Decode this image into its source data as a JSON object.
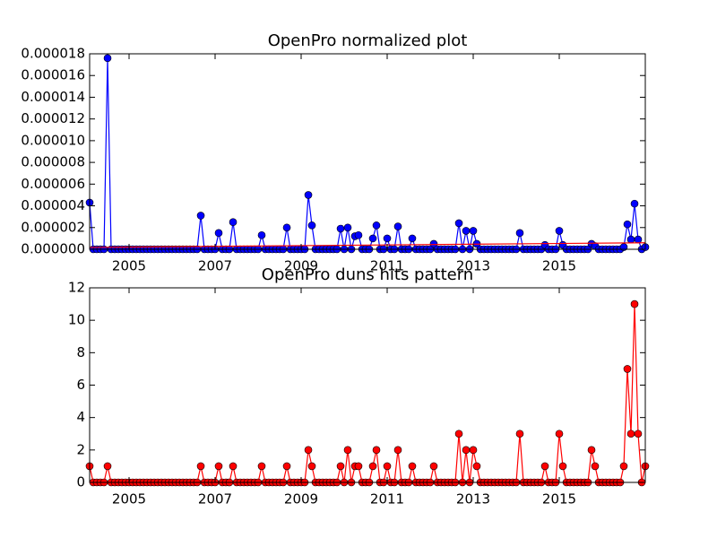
{
  "chart_data": [
    {
      "type": "line",
      "title": "OpenPro normalized plot",
      "x": [
        2004.083,
        2004.167,
        2004.25,
        2004.333,
        2004.417,
        2004.5,
        2004.583,
        2004.667,
        2004.75,
        2004.833,
        2004.917,
        2005,
        2005.083,
        2005.167,
        2005.25,
        2005.333,
        2005.417,
        2005.5,
        2005.583,
        2005.667,
        2005.75,
        2005.833,
        2005.917,
        2006,
        2006.083,
        2006.167,
        2006.25,
        2006.333,
        2006.417,
        2006.5,
        2006.583,
        2006.667,
        2006.75,
        2006.833,
        2006.917,
        2007,
        2007.083,
        2007.167,
        2007.25,
        2007.333,
        2007.417,
        2007.5,
        2007.583,
        2007.667,
        2007.75,
        2007.833,
        2007.917,
        2008,
        2008.083,
        2008.167,
        2008.25,
        2008.333,
        2008.417,
        2008.5,
        2008.583,
        2008.667,
        2008.75,
        2008.833,
        2008.917,
        2009,
        2009.083,
        2009.167,
        2009.25,
        2009.333,
        2009.417,
        2009.5,
        2009.583,
        2009.667,
        2009.75,
        2009.833,
        2009.917,
        2010,
        2010.083,
        2010.167,
        2010.25,
        2010.333,
        2010.417,
        2010.5,
        2010.583,
        2010.667,
        2010.75,
        2010.833,
        2010.917,
        2011,
        2011.083,
        2011.167,
        2011.25,
        2011.333,
        2011.417,
        2011.5,
        2011.583,
        2011.667,
        2011.75,
        2011.833,
        2011.917,
        2012,
        2012.083,
        2012.167,
        2012.25,
        2012.333,
        2012.417,
        2012.5,
        2012.583,
        2012.667,
        2012.75,
        2012.833,
        2012.917,
        2013,
        2013.083,
        2013.167,
        2013.25,
        2013.333,
        2013.417,
        2013.5,
        2013.583,
        2013.667,
        2013.75,
        2013.833,
        2013.917,
        2014,
        2014.083,
        2014.167,
        2014.25,
        2014.333,
        2014.417,
        2014.5,
        2014.583,
        2014.667,
        2014.75,
        2014.833,
        2014.917,
        2015,
        2015.083,
        2015.167,
        2015.25,
        2015.333,
        2015.417,
        2015.5,
        2015.583,
        2015.667,
        2015.75,
        2015.833,
        2015.917,
        2016,
        2016.083,
        2016.167,
        2016.25,
        2016.333,
        2016.417,
        2016.5,
        2016.583,
        2016.667,
        2016.75,
        2016.833,
        2016.917,
        2017
      ],
      "series": [
        {
          "color": "#0000ff",
          "marker": true,
          "values": [
            4.3e-06,
            0,
            0,
            0,
            0,
            1.76e-05,
            0,
            0,
            0,
            0,
            0,
            0,
            0,
            0,
            0,
            0,
            0,
            0,
            0,
            0,
            0,
            0,
            0,
            0,
            0,
            0,
            0,
            0,
            0,
            0,
            0,
            3.1e-06,
            0,
            0,
            0,
            0,
            1.5e-06,
            0,
            0,
            0,
            2.5e-06,
            0,
            0,
            0,
            0,
            0,
            0,
            0,
            1.3e-06,
            0,
            0,
            0,
            0,
            0,
            0,
            2e-06,
            0,
            0,
            0,
            0,
            0,
            5e-06,
            2.2e-06,
            0,
            0,
            0,
            0,
            0,
            0,
            0,
            1.9e-06,
            0,
            2e-06,
            0,
            1.2e-06,
            1.3e-06,
            0,
            0,
            0,
            1e-06,
            2.2e-06,
            0,
            0,
            1e-06,
            0,
            0,
            2.1e-06,
            0,
            0,
            0,
            1e-06,
            0,
            0,
            0,
            0,
            0,
            5e-07,
            0,
            0,
            0,
            0,
            0,
            0,
            2.4e-06,
            0,
            1.7e-06,
            0,
            1.7e-06,
            5e-07,
            0,
            0,
            0,
            0,
            0,
            0,
            0,
            0,
            0,
            0,
            0,
            1.5e-06,
            0,
            0,
            0,
            0,
            0,
            0,
            4e-07,
            0,
            0,
            0,
            1.7e-06,
            4e-07,
            0,
            0,
            0,
            0,
            0,
            0,
            0,
            5e-07,
            3e-07,
            0,
            0,
            0,
            0,
            0,
            0,
            0,
            2e-07,
            2.3e-06,
            9e-07,
            4.2e-06,
            9e-07,
            0,
            2e-07
          ]
        },
        {
          "color": "#ff0000",
          "marker": false,
          "x": [
            2004.083,
            2017
          ],
          "values": [
            1.7e-07,
            6e-07
          ]
        }
      ],
      "xlim": [
        2004.083,
        2017
      ],
      "xticks": [
        2005,
        2007,
        2009,
        2011,
        2013,
        2015
      ],
      "ylim": [
        0,
        1.8e-05
      ],
      "yticks": [
        {
          "value": 0,
          "label": "0.000000"
        },
        {
          "value": 2e-06,
          "label": "0.000002"
        },
        {
          "value": 4e-06,
          "label": "0.000004"
        },
        {
          "value": 6e-06,
          "label": "0.000006"
        },
        {
          "value": 8e-06,
          "label": "0.000008"
        },
        {
          "value": 1e-05,
          "label": "0.000010"
        },
        {
          "value": 1.2e-05,
          "label": "0.000012"
        },
        {
          "value": 1.4e-05,
          "label": "0.000014"
        },
        {
          "value": 1.6e-05,
          "label": "0.000016"
        },
        {
          "value": 1.8e-05,
          "label": "0.000018"
        }
      ]
    },
    {
      "type": "line",
      "title": "OpenPro duns hits pattern",
      "x": [
        2004.083,
        2004.167,
        2004.25,
        2004.333,
        2004.417,
        2004.5,
        2004.583,
        2004.667,
        2004.75,
        2004.833,
        2004.917,
        2005,
        2005.083,
        2005.167,
        2005.25,
        2005.333,
        2005.417,
        2005.5,
        2005.583,
        2005.667,
        2005.75,
        2005.833,
        2005.917,
        2006,
        2006.083,
        2006.167,
        2006.25,
        2006.333,
        2006.417,
        2006.5,
        2006.583,
        2006.667,
        2006.75,
        2006.833,
        2006.917,
        2007,
        2007.083,
        2007.167,
        2007.25,
        2007.333,
        2007.417,
        2007.5,
        2007.583,
        2007.667,
        2007.75,
        2007.833,
        2007.917,
        2008,
        2008.083,
        2008.167,
        2008.25,
        2008.333,
        2008.417,
        2008.5,
        2008.583,
        2008.667,
        2008.75,
        2008.833,
        2008.917,
        2009,
        2009.083,
        2009.167,
        2009.25,
        2009.333,
        2009.417,
        2009.5,
        2009.583,
        2009.667,
        2009.75,
        2009.833,
        2009.917,
        2010,
        2010.083,
        2010.167,
        2010.25,
        2010.333,
        2010.417,
        2010.5,
        2010.583,
        2010.667,
        2010.75,
        2010.833,
        2010.917,
        2011,
        2011.083,
        2011.167,
        2011.25,
        2011.333,
        2011.417,
        2011.5,
        2011.583,
        2011.667,
        2011.75,
        2011.833,
        2011.917,
        2012,
        2012.083,
        2012.167,
        2012.25,
        2012.333,
        2012.417,
        2012.5,
        2012.583,
        2012.667,
        2012.75,
        2012.833,
        2012.917,
        2013,
        2013.083,
        2013.167,
        2013.25,
        2013.333,
        2013.417,
        2013.5,
        2013.583,
        2013.667,
        2013.75,
        2013.833,
        2013.917,
        2014,
        2014.083,
        2014.167,
        2014.25,
        2014.333,
        2014.417,
        2014.5,
        2014.583,
        2014.667,
        2014.75,
        2014.833,
        2014.917,
        2015,
        2015.083,
        2015.167,
        2015.25,
        2015.333,
        2015.417,
        2015.5,
        2015.583,
        2015.667,
        2015.75,
        2015.833,
        2015.917,
        2016,
        2016.083,
        2016.167,
        2016.25,
        2016.333,
        2016.417,
        2016.5,
        2016.583,
        2016.667,
        2016.75,
        2016.833,
        2016.917,
        2017
      ],
      "series": [
        {
          "color": "#ff0000",
          "marker": true,
          "values": [
            1,
            0,
            0,
            0,
            0,
            1,
            0,
            0,
            0,
            0,
            0,
            0,
            0,
            0,
            0,
            0,
            0,
            0,
            0,
            0,
            0,
            0,
            0,
            0,
            0,
            0,
            0,
            0,
            0,
            0,
            0,
            1,
            0,
            0,
            0,
            0,
            1,
            0,
            0,
            0,
            1,
            0,
            0,
            0,
            0,
            0,
            0,
            0,
            1,
            0,
            0,
            0,
            0,
            0,
            0,
            1,
            0,
            0,
            0,
            0,
            0,
            2,
            1,
            0,
            0,
            0,
            0,
            0,
            0,
            0,
            1,
            0,
            2,
            0,
            1,
            1,
            0,
            0,
            0,
            1,
            2,
            0,
            0,
            1,
            0,
            0,
            2,
            0,
            0,
            0,
            1,
            0,
            0,
            0,
            0,
            0,
            1,
            0,
            0,
            0,
            0,
            0,
            0,
            3,
            0,
            2,
            0,
            2,
            1,
            0,
            0,
            0,
            0,
            0,
            0,
            0,
            0,
            0,
            0,
            0,
            3,
            0,
            0,
            0,
            0,
            0,
            0,
            1,
            0,
            0,
            0,
            3,
            1,
            0,
            0,
            0,
            0,
            0,
            0,
            0,
            2,
            1,
            0,
            0,
            0,
            0,
            0,
            0,
            0,
            1,
            7,
            3,
            11,
            3,
            0,
            1
          ]
        }
      ],
      "xlim": [
        2004.083,
        2017
      ],
      "xticks": [
        2005,
        2007,
        2009,
        2011,
        2013,
        2015
      ],
      "ylim": [
        0,
        12
      ],
      "yticks": [
        0,
        2,
        4,
        6,
        8,
        10,
        12
      ]
    }
  ]
}
